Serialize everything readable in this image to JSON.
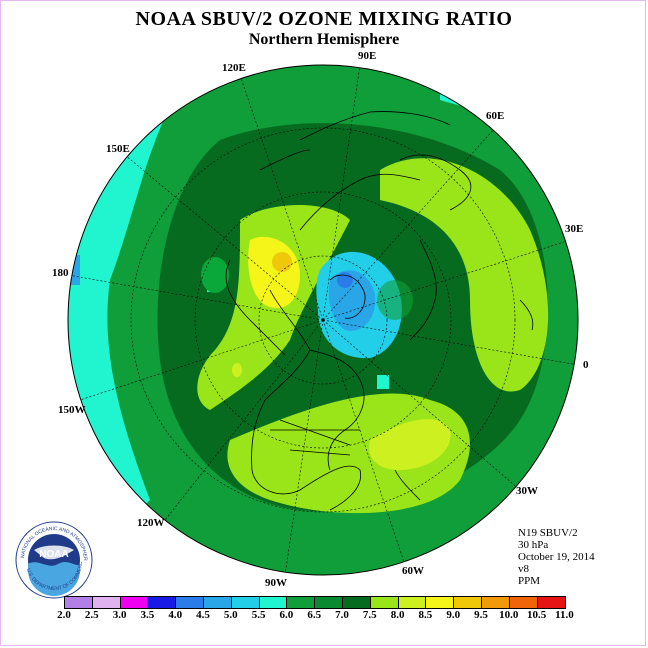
{
  "title": "NOAA SBUV/2 OZONE MIXING RATIO",
  "subtitle": "Northern Hemisphere",
  "longitude_labels": {
    "e90": "90E",
    "e120": "120E",
    "e60": "60E",
    "e150": "150E",
    "e30": "30E",
    "d180": "180",
    "d0": "0",
    "w150": "150W",
    "w30": "30W",
    "w120": "120W",
    "w60": "60W",
    "w90": "90W"
  },
  "info": {
    "satellite": "N19 SBUV/2",
    "pressure": "30 hPa",
    "date": "October 19, 2014",
    "version": "v8",
    "units": "PPM"
  },
  "logo": {
    "text": "NOAA",
    "ring_text": "NATIONAL OCEANIC AND ATMOSPHERIC ADMINISTRATION",
    "ring_text_bottom": "U.S. DEPARTMENT OF COMMERCE"
  },
  "legend": {
    "colors": [
      "#b27fe8",
      "#e0b3f0",
      "#f000f0",
      "#1a1ae6",
      "#2a7de8",
      "#29a6e8",
      "#23cfe8",
      "#20f5d0",
      "#0f9e3a",
      "#0a8a30",
      "#066b1f",
      "#99e51a",
      "#ccf020",
      "#f5f51a",
      "#f0c80a",
      "#f09a0a",
      "#f0640a",
      "#e61414",
      "#8a5a3c"
    ],
    "ticks": [
      "2.0",
      "2.5",
      "3.0",
      "3.5",
      "4.0",
      "4.5",
      "5.0",
      "5.5",
      "6.0",
      "6.5",
      "7.0",
      "7.5",
      "8.0",
      "8.5",
      "9.0",
      "9.5",
      "10.0",
      "10.5",
      "11.0"
    ]
  },
  "map_colors": {
    "outer_cyan": "#20f5d0",
    "green_mid": "#0f9e3a",
    "green_dark": "#066b1f",
    "green_light": "#0aa83a",
    "yellow_green": "#99e51a",
    "yellow": "#ccf020",
    "blue_light": "#29a6e8",
    "blue_dark": "#2a7de8"
  }
}
